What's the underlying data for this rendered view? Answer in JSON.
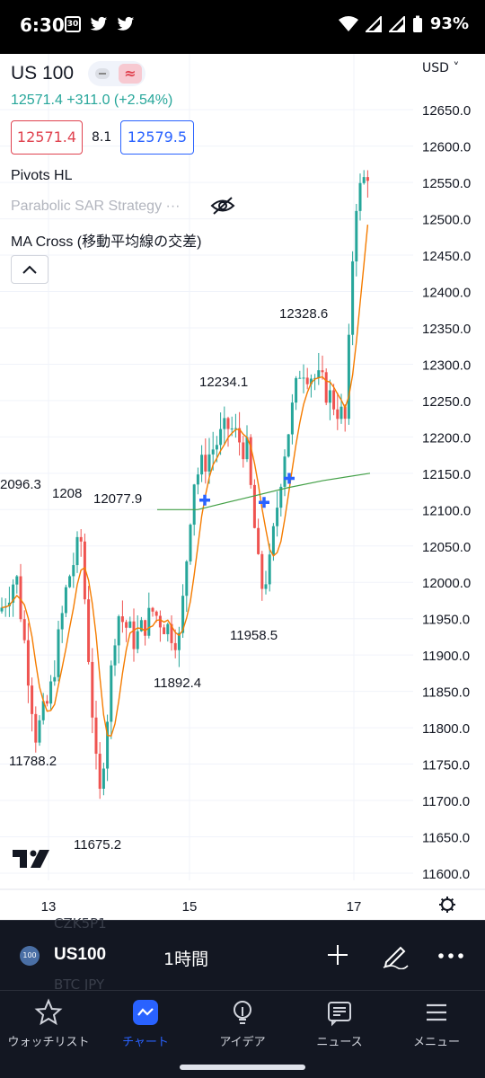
{
  "status_bar": {
    "time": "6:30",
    "battery": "93%",
    "calendar_day": "30"
  },
  "header": {
    "symbol": "US 100",
    "price_change": "12571.4  +311.0 (+2.54%)",
    "bid": "12571.4",
    "spread": "8.1",
    "ask": "12579.5",
    "currency": "USD"
  },
  "indicators": [
    {
      "label": "Pivots HL"
    },
    {
      "label": "Parabolic SAR Strategy ···"
    },
    {
      "label": "MA Cross (移動平均線の交差)"
    }
  ],
  "chart_data": {
    "type": "candlestick",
    "symbol": "US 100",
    "y_axis": {
      "ticks": [
        12650.0,
        12600.0,
        12550.0,
        12500.0,
        12450.0,
        12400.0,
        12350.0,
        12300.0,
        12250.0,
        12200.0,
        12150.0,
        12100.0,
        12050.0,
        12000.0,
        11950.0,
        11900.0,
        11850.0,
        11800.0,
        11750.0,
        11700.0,
        11650.0,
        11600.0
      ],
      "range": [
        11595,
        12670
      ]
    },
    "x_axis": {
      "ticks": [
        "13",
        "15",
        "17"
      ]
    },
    "pivot_labels": [
      "2096.3",
      "1208",
      "12077.9",
      "12234.1",
      "12328.6",
      "11958.5",
      "11892.4",
      "11788.2",
      "11675.2"
    ],
    "series": [
      {
        "name": "MA fast",
        "color": "#f57c00"
      },
      {
        "name": "MA slow",
        "color": "#43a047"
      }
    ]
  },
  "toolbar": {
    "badge": "100",
    "symbol": "US100",
    "interval": "1時間",
    "ghost_top": "CZK5P1",
    "ghost_bottom": "BTC JPY"
  },
  "nav": [
    {
      "label": "ウォッチリスト"
    },
    {
      "label": "チャート"
    },
    {
      "label": "アイデア"
    },
    {
      "label": "ニュース"
    },
    {
      "label": "メニュー"
    }
  ],
  "colors": {
    "up": "#26a69a",
    "down": "#ef5350",
    "accent": "#2962ff"
  }
}
